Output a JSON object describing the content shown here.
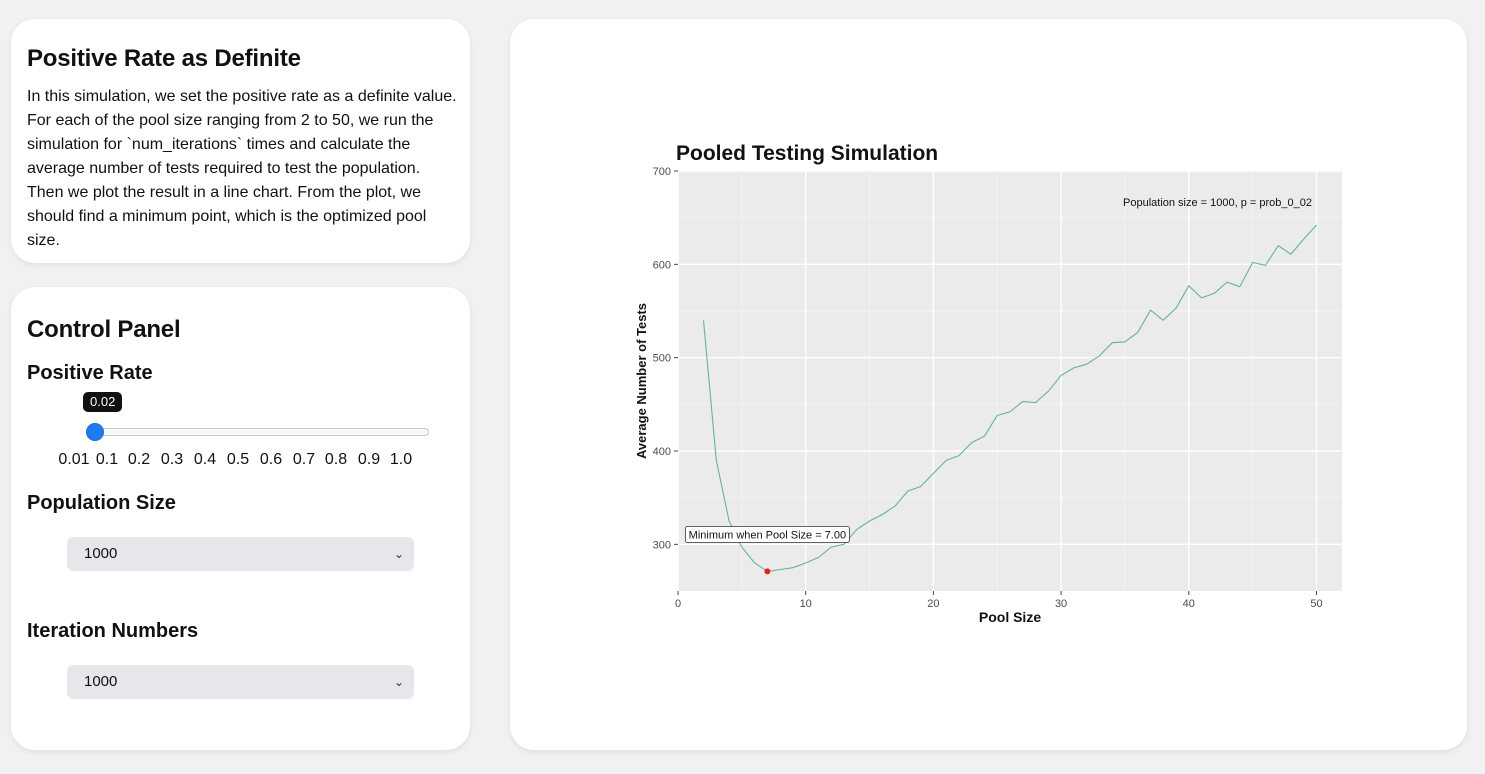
{
  "description": {
    "title": "Positive Rate as Definite",
    "text": "In this simulation, we set the positive rate as a definite value. For each of the pool size ranging from 2 to 50, we run the simulation for `num_iterations` times and calculate the average number of tests required to test the population. Then we plot the result in a line chart. From the plot, we should find a minimum point, which is the optimized pool size."
  },
  "control_panel": {
    "title": "Control Panel",
    "positive_rate": {
      "label": "Positive Rate",
      "value": "0.02",
      "min": 0.01,
      "max": 1.0,
      "ticks": [
        "0.01",
        "0.1",
        "0.2",
        "0.3",
        "0.4",
        "0.5",
        "0.6",
        "0.7",
        "0.8",
        "0.9",
        "1.0"
      ]
    },
    "population_size": {
      "label": "Population Size",
      "selected": "1000"
    },
    "iterations": {
      "label": "Iteration Numbers",
      "selected": "1000"
    }
  },
  "colors": {
    "accent": "#1e7cf0",
    "line": "#66b494",
    "min_point": "#e3231b",
    "panel": "#ebebeb"
  },
  "chart_data": {
    "type": "line",
    "title": "Pooled Testing Simulation",
    "xlabel": "Pool Size",
    "ylabel": "Average Number of Tests",
    "xlim": [
      0,
      52
    ],
    "ylim": [
      250,
      700
    ],
    "xticks": [
      0,
      10,
      20,
      30,
      40,
      50
    ],
    "yticks": [
      300,
      400,
      500,
      600,
      700
    ],
    "grid": true,
    "annotation_top": "Population size = 1000, p = prob_0_02",
    "annotation_min": "Minimum when Pool Size = 7.00",
    "min_point": {
      "x": 7,
      "y": 271
    },
    "x": [
      2,
      3,
      4,
      5,
      6,
      7,
      8,
      9,
      10,
      11,
      12,
      13,
      14,
      15,
      16,
      17,
      18,
      19,
      20,
      21,
      22,
      23,
      24,
      25,
      26,
      27,
      28,
      29,
      30,
      31,
      32,
      33,
      34,
      35,
      36,
      37,
      38,
      39,
      40,
      41,
      42,
      43,
      44,
      45,
      46,
      47,
      48,
      49,
      50
    ],
    "values": [
      540,
      390,
      325,
      297,
      280,
      271,
      273,
      275,
      280,
      286,
      297,
      300,
      316,
      325,
      332,
      341,
      357,
      362,
      376,
      390,
      395,
      409,
      416,
      438,
      442,
      453,
      452,
      464,
      481,
      489,
      493,
      502,
      516,
      517,
      527,
      551,
      540,
      553,
      577,
      564,
      569,
      581,
      576,
      602,
      599,
      620,
      611,
      627,
      642
    ]
  }
}
